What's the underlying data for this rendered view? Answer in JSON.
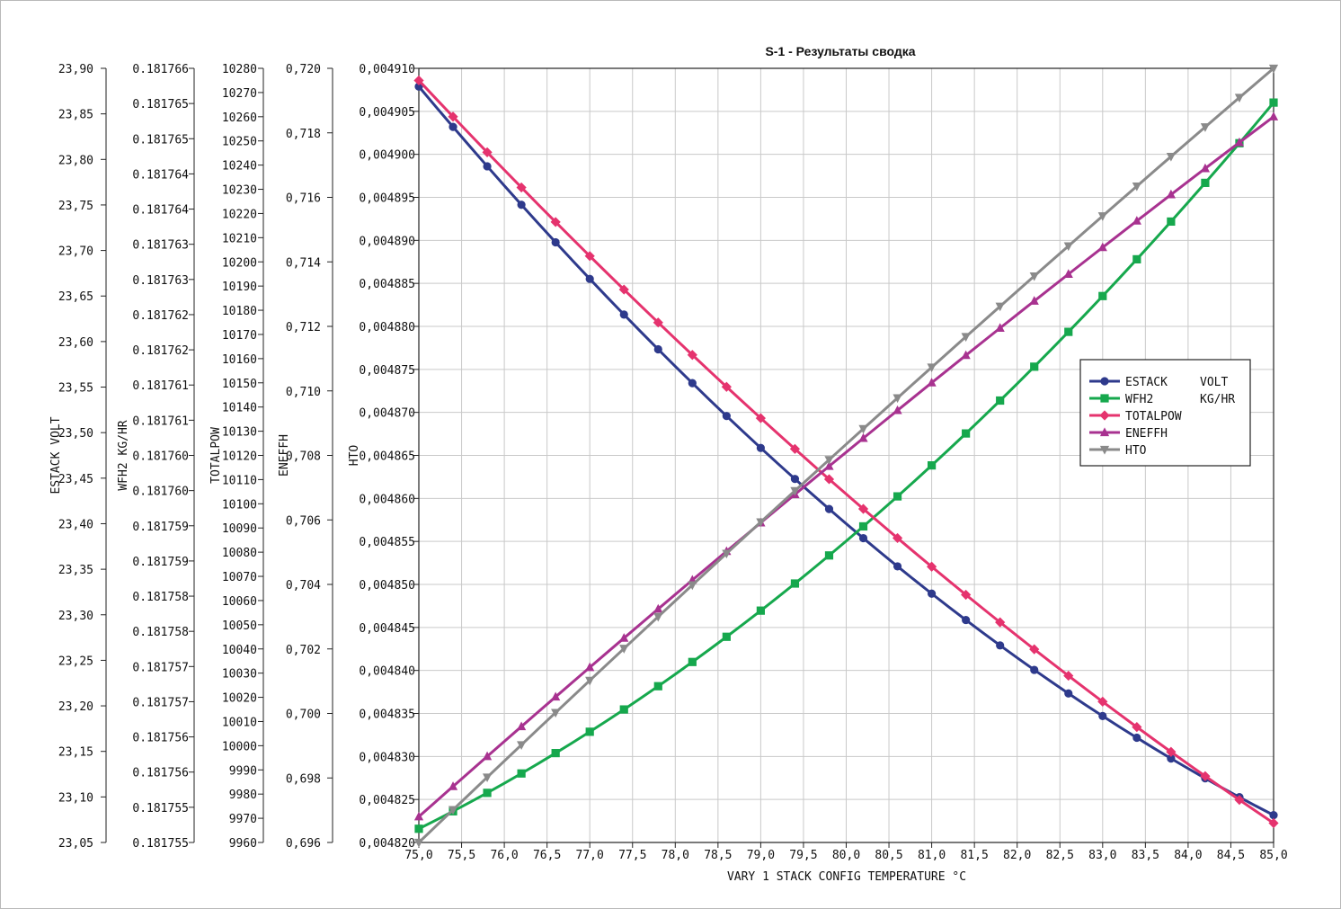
{
  "chart_data": {
    "type": "line",
    "title": "S-1 - Результаты сводка",
    "xlabel": "VARY 1 STACK CONFIG TEMPERATURE  °C",
    "x_ticks": [
      "75,0",
      "75,5",
      "76,0",
      "76,5",
      "77,0",
      "77,5",
      "78,0",
      "78,5",
      "79,0",
      "79,5",
      "80,0",
      "80,5",
      "81,0",
      "81,5",
      "82,0",
      "82,5",
      "83,0",
      "83,5",
      "84,0",
      "84,5",
      "85,0"
    ],
    "xlim": [
      75,
      85
    ],
    "grid": true,
    "legend_position": "right",
    "axes": [
      {
        "key": "estack",
        "label": "ESTACK  VOLT",
        "ticks": [
          "23,05",
          "23,10",
          "23,15",
          "23,20",
          "23,25",
          "23,30",
          "23,35",
          "23,40",
          "23,45",
          "23,50",
          "23,55",
          "23,60",
          "23,65",
          "23,70",
          "23,75",
          "23,80",
          "23,85",
          "23,90"
        ]
      },
      {
        "key": "wfh2",
        "label": "WFH2  KG/HR",
        "ticks": [
          "0.181755",
          "0.181755",
          "0.181756",
          "0.181756",
          "0.181757",
          "0.181757",
          "0.181758",
          "0.181758",
          "0.181759",
          "0.181759",
          "0.181760",
          "0.181760",
          "0.181761",
          "0.181761",
          "0.181762",
          "0.181762",
          "0.181763",
          "0.181763",
          "0.181764",
          "0.181764",
          "0.181765",
          "0.181765",
          "0.181766"
        ]
      },
      {
        "key": "totalpow",
        "label": "TOTALPOW",
        "ticks": [
          "9960",
          "9970",
          "9980",
          "9990",
          "10000",
          "10010",
          "10020",
          "10030",
          "10040",
          "10050",
          "10060",
          "10070",
          "10080",
          "10090",
          "10100",
          "10110",
          "10120",
          "10130",
          "10140",
          "10150",
          "10160",
          "10170",
          "10180",
          "10190",
          "10200",
          "10210",
          "10220",
          "10230",
          "10240",
          "10250",
          "10260",
          "10270",
          "10280"
        ]
      },
      {
        "key": "eneffh",
        "label": "ENEFFH",
        "ticks": [
          "0,696",
          "0,698",
          "0,700",
          "0,702",
          "0,704",
          "0,706",
          "0,708",
          "0,710",
          "0,712",
          "0,714",
          "0,716",
          "0,718",
          "0,720"
        ]
      },
      {
        "key": "hto",
        "label": "HTO",
        "ticks": [
          "0,004820",
          "0,004825",
          "0,004830",
          "0,004835",
          "0,004840",
          "0,004845",
          "0,004850",
          "0,004855",
          "0,004860",
          "0,004865",
          "0,004870",
          "0,004875",
          "0,004880",
          "0,004885",
          "0,004890",
          "0,004895",
          "0,004900",
          "0,004905",
          "0,004910"
        ]
      }
    ],
    "legend": [
      {
        "name": "ESTACK",
        "unit": "VOLT"
      },
      {
        "name": "WFH2",
        "unit": "KG/HR"
      },
      {
        "name": "TOTALPOW",
        "unit": ""
      },
      {
        "name": "ENEFFH",
        "unit": ""
      },
      {
        "name": "HTO",
        "unit": ""
      }
    ],
    "series": [
      {
        "name": "ESTACK",
        "axis": "estack",
        "color": "#2e3a8c",
        "marker": "circle",
        "start": 23.88,
        "mid": 23.4,
        "end": 23.08,
        "points": 51
      },
      {
        "name": "WFH2",
        "axis": "wfh2",
        "color": "#16a84d",
        "marker": "square",
        "start": 0.1817552,
        "mid": 0.1817594,
        "end": 0.1817658,
        "points": 51
      },
      {
        "name": "TOTALPOW",
        "axis": "totalpow",
        "color": "#e5336e",
        "marker": "diamond",
        "start": 10275,
        "mid": 10104,
        "end": 9968,
        "points": 51
      },
      {
        "name": "ENEFFH",
        "axis": "eneffh",
        "color": "#a83290",
        "marker": "triangle-up",
        "start": 0.6968,
        "mid": 0.7081,
        "end": 0.7185,
        "points": 51
      },
      {
        "name": "HTO",
        "axis": "hto",
        "color": "#8a8a8a",
        "marker": "triangle-down",
        "start": 0.00482,
        "mid": 0.0048663,
        "end": 0.00491,
        "points": 51
      }
    ]
  }
}
